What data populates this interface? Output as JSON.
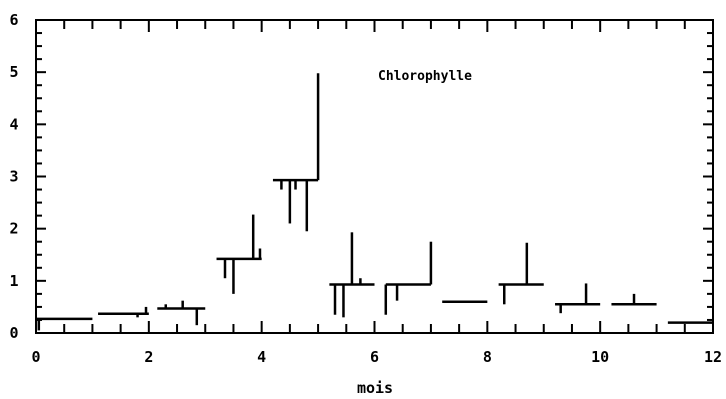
{
  "chart_data": {
    "type": "line",
    "title": "",
    "annotation": "Chlorophylle",
    "xlabel": "mois",
    "ylabel": "",
    "xlim": [
      0,
      12
    ],
    "ylim": [
      0,
      6
    ],
    "x_ticks": [
      "0",
      "2",
      "4",
      "6",
      "8",
      "10",
      "12"
    ],
    "y_ticks": [
      "0",
      "1",
      "2",
      "3",
      "4",
      "5",
      "6"
    ],
    "grid": false,
    "series": [
      {
        "segments": [
          {
            "x0": 0.0,
            "x1": 1.0,
            "y": 0.27
          },
          {
            "x0": 1.1,
            "x1": 2.0,
            "y": 0.37
          },
          {
            "x0": 2.15,
            "x1": 3.0,
            "y": 0.47
          },
          {
            "x0": 3.2,
            "x1": 4.0,
            "y": 1.42
          },
          {
            "x0": 4.2,
            "x1": 5.0,
            "y": 2.93
          },
          {
            "x0": 5.2,
            "x1": 6.0,
            "y": 0.93
          },
          {
            "x0": 6.2,
            "x1": 7.0,
            "y": 0.93
          },
          {
            "x0": 7.2,
            "x1": 8.0,
            "y": 0.6
          },
          {
            "x0": 8.2,
            "x1": 9.0,
            "y": 0.93
          },
          {
            "x0": 9.2,
            "x1": 10.0,
            "y": 0.55
          },
          {
            "x0": 10.2,
            "x1": 11.0,
            "y": 0.55
          },
          {
            "x0": 11.2,
            "x1": 12.0,
            "y": 0.2
          }
        ],
        "observations": [
          {
            "x": 0.05,
            "y": 0.05
          },
          {
            "x": 0.3,
            "y": 0.27
          },
          {
            "x": 1.8,
            "y": 0.3
          },
          {
            "x": 1.95,
            "y": 0.5
          },
          {
            "x": 2.3,
            "y": 0.55
          },
          {
            "x": 2.6,
            "y": 0.62
          },
          {
            "x": 2.85,
            "y": 0.15
          },
          {
            "x": 3.35,
            "y": 1.05
          },
          {
            "x": 3.5,
            "y": 0.75
          },
          {
            "x": 3.85,
            "y": 2.27
          },
          {
            "x": 3.97,
            "y": 1.62
          },
          {
            "x": 4.35,
            "y": 2.75
          },
          {
            "x": 4.5,
            "y": 2.1
          },
          {
            "x": 4.6,
            "y": 2.75
          },
          {
            "x": 4.8,
            "y": 1.95
          },
          {
            "x": 5.0,
            "y": 4.98
          },
          {
            "x": 5.3,
            "y": 0.35
          },
          {
            "x": 5.45,
            "y": 0.3
          },
          {
            "x": 5.6,
            "y": 1.93
          },
          {
            "x": 5.75,
            "y": 1.05
          },
          {
            "x": 6.2,
            "y": 0.35
          },
          {
            "x": 6.4,
            "y": 0.62
          },
          {
            "x": 7.0,
            "y": 1.75
          },
          {
            "x": 8.3,
            "y": 0.55
          },
          {
            "x": 8.7,
            "y": 1.73
          },
          {
            "x": 9.3,
            "y": 0.38
          },
          {
            "x": 9.75,
            "y": 0.95
          },
          {
            "x": 10.6,
            "y": 0.75
          },
          {
            "x": 11.1,
            "y": 0.0
          }
        ]
      }
    ]
  }
}
